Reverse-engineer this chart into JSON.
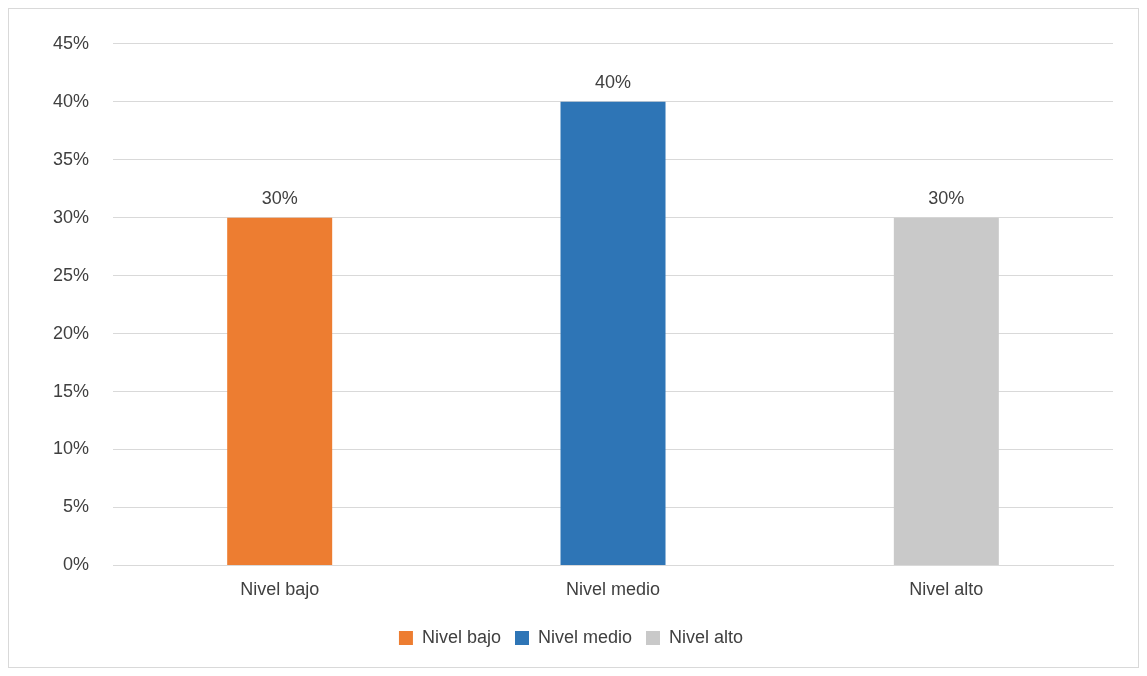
{
  "chart_data": {
    "type": "bar",
    "categories": [
      "Nivel bajo",
      "Nivel medio",
      "Nivel alto"
    ],
    "series": [
      {
        "name": "Nivel bajo",
        "color": "#ed7d31",
        "values": [
          30,
          null,
          null
        ],
        "value_labels": [
          "30%",
          null,
          null
        ]
      },
      {
        "name": "Nivel medio",
        "color": "#2e75b6",
        "values": [
          null,
          40,
          null
        ],
        "value_labels": [
          null,
          "40%",
          null
        ]
      },
      {
        "name": "Nivel alto",
        "color": "#c9c9c9",
        "values": [
          null,
          null,
          30
        ],
        "value_labels": [
          null,
          null,
          "30%"
        ]
      }
    ],
    "ylim": [
      0,
      45
    ],
    "yticks": [
      {
        "value": 0,
        "label": "0%"
      },
      {
        "value": 5,
        "label": "5%"
      },
      {
        "value": 10,
        "label": "10%"
      },
      {
        "value": 15,
        "label": "15%"
      },
      {
        "value": 20,
        "label": "20%"
      },
      {
        "value": 25,
        "label": "25%"
      },
      {
        "value": 30,
        "label": "30%"
      },
      {
        "value": 35,
        "label": "35%"
      },
      {
        "value": 40,
        "label": "40%"
      },
      {
        "value": 45,
        "label": "45%"
      }
    ],
    "grid": "y",
    "legend": "bottom"
  }
}
